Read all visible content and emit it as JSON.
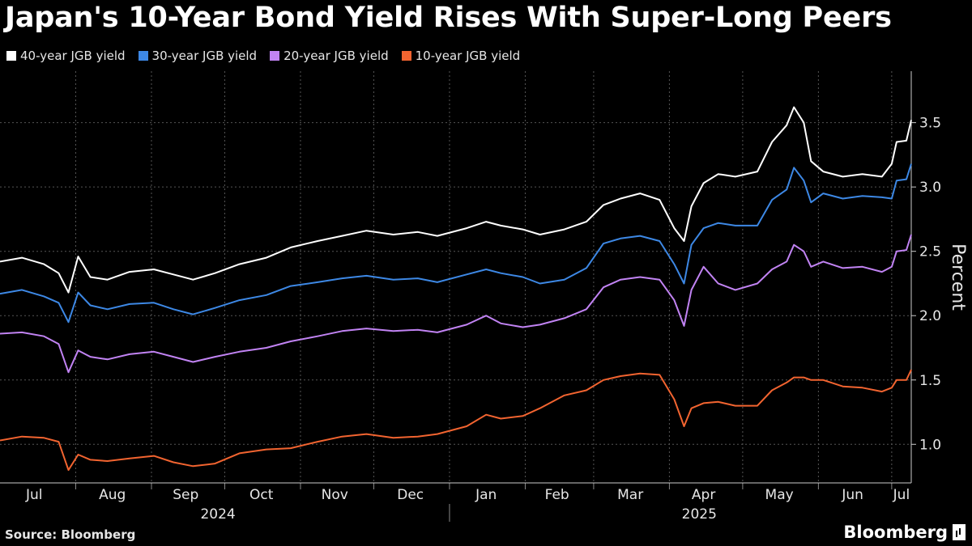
{
  "chart_data": {
    "type": "line",
    "title": "Japan's 10-Year Bond Yield Rises With Super-Long Peers",
    "ylabel": "Percent",
    "ylim": [
      0.7,
      3.9
    ],
    "yticks": [
      "1.0",
      "1.5",
      "2.0",
      "2.5",
      "3.0",
      "3.5"
    ],
    "x_range": [
      "2024-07-01",
      "2025-07-09"
    ],
    "month_labels": [
      {
        "label": "Jul",
        "date": "2024-07-15"
      },
      {
        "label": "Aug",
        "date": "2024-08-16"
      },
      {
        "label": "Sep",
        "date": "2024-09-15"
      },
      {
        "label": "Oct",
        "date": "2024-10-16"
      },
      {
        "label": "Nov",
        "date": "2024-11-15"
      },
      {
        "label": "Dec",
        "date": "2024-12-16"
      },
      {
        "label": "Jan",
        "date": "2025-01-16"
      },
      {
        "label": "Feb",
        "date": "2025-02-14"
      },
      {
        "label": "Mar",
        "date": "2025-03-16"
      },
      {
        "label": "Apr",
        "date": "2025-04-15"
      },
      {
        "label": "May",
        "date": "2025-05-16"
      },
      {
        "label": "Jun",
        "date": "2025-06-15"
      },
      {
        "label": "Jul",
        "date": "2025-07-05"
      }
    ],
    "years": [
      {
        "label": "2024",
        "date": "2024-10-01"
      },
      {
        "label": "2025",
        "date": "2025-04-16"
      }
    ],
    "grid": true,
    "legend_position": "top-left",
    "series": [
      {
        "name": "40-year JGB yield",
        "color": "#ffffff",
        "points": [
          [
            "2024-07-01",
            2.42
          ],
          [
            "2024-07-10",
            2.45
          ],
          [
            "2024-07-19",
            2.4
          ],
          [
            "2024-07-25",
            2.33
          ],
          [
            "2024-07-29",
            2.18
          ],
          [
            "2024-08-02",
            2.46
          ],
          [
            "2024-08-07",
            2.3
          ],
          [
            "2024-08-14",
            2.28
          ],
          [
            "2024-08-23",
            2.34
          ],
          [
            "2024-09-02",
            2.36
          ],
          [
            "2024-09-10",
            2.32
          ],
          [
            "2024-09-18",
            2.28
          ],
          [
            "2024-09-27",
            2.33
          ],
          [
            "2024-10-07",
            2.4
          ],
          [
            "2024-10-18",
            2.45
          ],
          [
            "2024-10-28",
            2.53
          ],
          [
            "2024-11-08",
            2.58
          ],
          [
            "2024-11-18",
            2.62
          ],
          [
            "2024-11-28",
            2.66
          ],
          [
            "2024-12-09",
            2.63
          ],
          [
            "2024-12-19",
            2.65
          ],
          [
            "2024-12-27",
            2.62
          ],
          [
            "2025-01-08",
            2.68
          ],
          [
            "2025-01-16",
            2.73
          ],
          [
            "2025-01-22",
            2.7
          ],
          [
            "2025-01-31",
            2.67
          ],
          [
            "2025-02-07",
            2.63
          ],
          [
            "2025-02-17",
            2.67
          ],
          [
            "2025-02-26",
            2.73
          ],
          [
            "2025-03-05",
            2.86
          ],
          [
            "2025-03-12",
            2.91
          ],
          [
            "2025-03-20",
            2.95
          ],
          [
            "2025-03-28",
            2.9
          ],
          [
            "2025-04-03",
            2.68
          ],
          [
            "2025-04-07",
            2.58
          ],
          [
            "2025-04-10",
            2.85
          ],
          [
            "2025-04-15",
            3.03
          ],
          [
            "2025-04-21",
            3.1
          ],
          [
            "2025-04-28",
            3.08
          ],
          [
            "2025-05-07",
            3.12
          ],
          [
            "2025-05-13",
            3.35
          ],
          [
            "2025-05-19",
            3.48
          ],
          [
            "2025-05-22",
            3.62
          ],
          [
            "2025-05-26",
            3.5
          ],
          [
            "2025-05-29",
            3.2
          ],
          [
            "2025-06-03",
            3.12
          ],
          [
            "2025-06-11",
            3.08
          ],
          [
            "2025-06-19",
            3.1
          ],
          [
            "2025-06-27",
            3.08
          ],
          [
            "2025-07-01",
            3.18
          ],
          [
            "2025-07-03",
            3.35
          ],
          [
            "2025-07-07",
            3.36
          ],
          [
            "2025-07-09",
            3.52
          ]
        ]
      },
      {
        "name": "30-year JGB yield",
        "color": "#3d88e5",
        "points": [
          [
            "2024-07-01",
            2.17
          ],
          [
            "2024-07-10",
            2.2
          ],
          [
            "2024-07-19",
            2.15
          ],
          [
            "2024-07-25",
            2.1
          ],
          [
            "2024-07-29",
            1.95
          ],
          [
            "2024-08-02",
            2.18
          ],
          [
            "2024-08-07",
            2.08
          ],
          [
            "2024-08-14",
            2.05
          ],
          [
            "2024-08-23",
            2.09
          ],
          [
            "2024-09-02",
            2.1
          ],
          [
            "2024-09-10",
            2.05
          ],
          [
            "2024-09-18",
            2.01
          ],
          [
            "2024-09-27",
            2.06
          ],
          [
            "2024-10-07",
            2.12
          ],
          [
            "2024-10-18",
            2.16
          ],
          [
            "2024-10-28",
            2.23
          ],
          [
            "2024-11-08",
            2.26
          ],
          [
            "2024-11-18",
            2.29
          ],
          [
            "2024-11-28",
            2.31
          ],
          [
            "2024-12-09",
            2.28
          ],
          [
            "2024-12-19",
            2.29
          ],
          [
            "2024-12-27",
            2.26
          ],
          [
            "2025-01-08",
            2.32
          ],
          [
            "2025-01-16",
            2.36
          ],
          [
            "2025-01-22",
            2.33
          ],
          [
            "2025-01-31",
            2.3
          ],
          [
            "2025-02-07",
            2.25
          ],
          [
            "2025-02-17",
            2.28
          ],
          [
            "2025-02-26",
            2.37
          ],
          [
            "2025-03-05",
            2.56
          ],
          [
            "2025-03-12",
            2.6
          ],
          [
            "2025-03-20",
            2.62
          ],
          [
            "2025-03-28",
            2.58
          ],
          [
            "2025-04-03",
            2.4
          ],
          [
            "2025-04-07",
            2.25
          ],
          [
            "2025-04-10",
            2.55
          ],
          [
            "2025-04-15",
            2.68
          ],
          [
            "2025-04-21",
            2.72
          ],
          [
            "2025-04-28",
            2.7
          ],
          [
            "2025-05-07",
            2.7
          ],
          [
            "2025-05-13",
            2.9
          ],
          [
            "2025-05-19",
            2.98
          ],
          [
            "2025-05-22",
            3.15
          ],
          [
            "2025-05-26",
            3.05
          ],
          [
            "2025-05-29",
            2.88
          ],
          [
            "2025-06-03",
            2.95
          ],
          [
            "2025-06-11",
            2.91
          ],
          [
            "2025-06-19",
            2.93
          ],
          [
            "2025-06-27",
            2.92
          ],
          [
            "2025-07-01",
            2.91
          ],
          [
            "2025-07-03",
            3.05
          ],
          [
            "2025-07-07",
            3.06
          ],
          [
            "2025-07-09",
            3.18
          ]
        ]
      },
      {
        "name": "20-year JGB yield",
        "color": "#c183f3",
        "points": [
          [
            "2024-07-01",
            1.86
          ],
          [
            "2024-07-10",
            1.87
          ],
          [
            "2024-07-19",
            1.84
          ],
          [
            "2024-07-25",
            1.78
          ],
          [
            "2024-07-29",
            1.56
          ],
          [
            "2024-08-02",
            1.73
          ],
          [
            "2024-08-07",
            1.68
          ],
          [
            "2024-08-14",
            1.66
          ],
          [
            "2024-08-23",
            1.7
          ],
          [
            "2024-09-02",
            1.72
          ],
          [
            "2024-09-10",
            1.68
          ],
          [
            "2024-09-18",
            1.64
          ],
          [
            "2024-09-27",
            1.68
          ],
          [
            "2024-10-07",
            1.72
          ],
          [
            "2024-10-18",
            1.75
          ],
          [
            "2024-10-28",
            1.8
          ],
          [
            "2024-11-08",
            1.84
          ],
          [
            "2024-11-18",
            1.88
          ],
          [
            "2024-11-28",
            1.9
          ],
          [
            "2024-12-09",
            1.88
          ],
          [
            "2024-12-19",
            1.89
          ],
          [
            "2024-12-27",
            1.87
          ],
          [
            "2025-01-08",
            1.93
          ],
          [
            "2025-01-16",
            2.0
          ],
          [
            "2025-01-22",
            1.94
          ],
          [
            "2025-01-31",
            1.91
          ],
          [
            "2025-02-07",
            1.93
          ],
          [
            "2025-02-17",
            1.98
          ],
          [
            "2025-02-26",
            2.05
          ],
          [
            "2025-03-05",
            2.22
          ],
          [
            "2025-03-12",
            2.28
          ],
          [
            "2025-03-20",
            2.3
          ],
          [
            "2025-03-28",
            2.28
          ],
          [
            "2025-04-03",
            2.12
          ],
          [
            "2025-04-07",
            1.92
          ],
          [
            "2025-04-10",
            2.2
          ],
          [
            "2025-04-15",
            2.38
          ],
          [
            "2025-04-21",
            2.25
          ],
          [
            "2025-04-28",
            2.2
          ],
          [
            "2025-05-07",
            2.25
          ],
          [
            "2025-05-13",
            2.36
          ],
          [
            "2025-05-19",
            2.42
          ],
          [
            "2025-05-22",
            2.55
          ],
          [
            "2025-05-26",
            2.5
          ],
          [
            "2025-05-29",
            2.38
          ],
          [
            "2025-06-03",
            2.42
          ],
          [
            "2025-06-11",
            2.37
          ],
          [
            "2025-06-19",
            2.38
          ],
          [
            "2025-06-27",
            2.34
          ],
          [
            "2025-07-01",
            2.38
          ],
          [
            "2025-07-03",
            2.5
          ],
          [
            "2025-07-07",
            2.51
          ],
          [
            "2025-07-09",
            2.63
          ]
        ]
      },
      {
        "name": "10-year JGB yield",
        "color": "#f26430",
        "points": [
          [
            "2024-07-01",
            1.03
          ],
          [
            "2024-07-10",
            1.06
          ],
          [
            "2024-07-19",
            1.05
          ],
          [
            "2024-07-25",
            1.02
          ],
          [
            "2024-07-29",
            0.8
          ],
          [
            "2024-08-02",
            0.92
          ],
          [
            "2024-08-07",
            0.88
          ],
          [
            "2024-08-14",
            0.87
          ],
          [
            "2024-08-23",
            0.89
          ],
          [
            "2024-09-02",
            0.91
          ],
          [
            "2024-09-10",
            0.86
          ],
          [
            "2024-09-18",
            0.83
          ],
          [
            "2024-09-27",
            0.85
          ],
          [
            "2024-10-07",
            0.93
          ],
          [
            "2024-10-18",
            0.96
          ],
          [
            "2024-10-28",
            0.97
          ],
          [
            "2024-11-08",
            1.02
          ],
          [
            "2024-11-18",
            1.06
          ],
          [
            "2024-11-28",
            1.08
          ],
          [
            "2024-12-09",
            1.05
          ],
          [
            "2024-12-19",
            1.06
          ],
          [
            "2024-12-27",
            1.08
          ],
          [
            "2025-01-08",
            1.14
          ],
          [
            "2025-01-16",
            1.23
          ],
          [
            "2025-01-22",
            1.2
          ],
          [
            "2025-01-31",
            1.22
          ],
          [
            "2025-02-07",
            1.28
          ],
          [
            "2025-02-17",
            1.38
          ],
          [
            "2025-02-26",
            1.42
          ],
          [
            "2025-03-05",
            1.5
          ],
          [
            "2025-03-12",
            1.53
          ],
          [
            "2025-03-20",
            1.55
          ],
          [
            "2025-03-28",
            1.54
          ],
          [
            "2025-04-03",
            1.35
          ],
          [
            "2025-04-07",
            1.14
          ],
          [
            "2025-04-10",
            1.28
          ],
          [
            "2025-04-15",
            1.32
          ],
          [
            "2025-04-21",
            1.33
          ],
          [
            "2025-04-28",
            1.3
          ],
          [
            "2025-05-07",
            1.3
          ],
          [
            "2025-05-13",
            1.42
          ],
          [
            "2025-05-19",
            1.48
          ],
          [
            "2025-05-22",
            1.52
          ],
          [
            "2025-05-26",
            1.52
          ],
          [
            "2025-05-29",
            1.5
          ],
          [
            "2025-06-03",
            1.5
          ],
          [
            "2025-06-11",
            1.45
          ],
          [
            "2025-06-19",
            1.44
          ],
          [
            "2025-06-27",
            1.41
          ],
          [
            "2025-07-01",
            1.44
          ],
          [
            "2025-07-03",
            1.5
          ],
          [
            "2025-07-07",
            1.5
          ],
          [
            "2025-07-09",
            1.58
          ]
        ]
      }
    ]
  },
  "footer": {
    "source": "Source: Bloomberg",
    "brand": "Bloomberg"
  }
}
